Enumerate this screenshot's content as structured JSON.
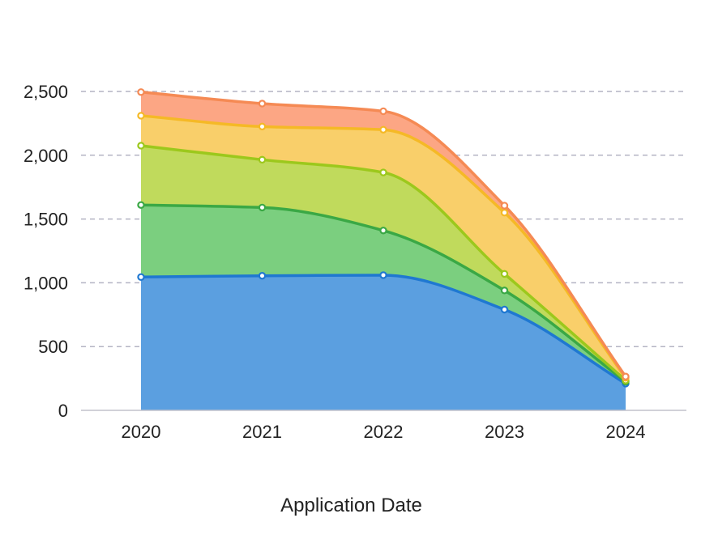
{
  "chart_data": {
    "type": "area",
    "stacked": true,
    "title": "",
    "xlabel": "Application Date",
    "ylabel": "",
    "categories": [
      "2020",
      "2021",
      "2022",
      "2023",
      "2024"
    ],
    "ylim": [
      0,
      2500
    ],
    "y_ticks": [
      0,
      500,
      1000,
      1500,
      2000,
      2500
    ],
    "y_tick_labels": [
      "0",
      "500",
      "1,000",
      "1,500",
      "2,000",
      "2,500"
    ],
    "grid": "horizontal dashed",
    "legend": "none",
    "series": [
      {
        "color": "#1f78d1",
        "fill": "#5b9fe0",
        "values": [
          1045,
          1055,
          1060,
          790,
          210
        ]
      },
      {
        "color": "#3aa845",
        "fill": "#7bcf7f",
        "values": [
          565,
          535,
          350,
          150,
          15
        ]
      },
      {
        "color": "#9cc81c",
        "fill": "#c0da5c",
        "values": [
          465,
          375,
          455,
          130,
          10
        ]
      },
      {
        "color": "#f5b926",
        "fill": "#f9cf6a",
        "values": [
          235,
          260,
          335,
          480,
          20
        ]
      },
      {
        "color": "#f58a54",
        "fill": "#fca684",
        "values": [
          185,
          180,
          145,
          55,
          10
        ]
      }
    ]
  }
}
